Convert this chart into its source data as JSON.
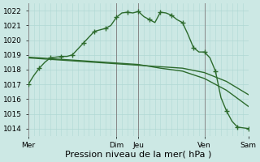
{
  "title": "",
  "xlabel": "Pression niveau de la mer( hPa )",
  "bg_color": "#cce8e4",
  "grid_color": "#b0d8d4",
  "line_color": "#2d6b2d",
  "vline_color": "#888888",
  "ylim": [
    1013.5,
    1022.5
  ],
  "yticks": [
    1014,
    1015,
    1016,
    1017,
    1018,
    1019,
    1020,
    1021,
    1022
  ],
  "xlim": [
    0,
    120
  ],
  "x_day_ticks": [
    0,
    48,
    60,
    96,
    120
  ],
  "x_day_labels": [
    "Mer",
    "Dim",
    "Jeu",
    "Ven",
    "Sam"
  ],
  "x_vlines": [
    0,
    48,
    60,
    96,
    120
  ],
  "series1_x": [
    0,
    3,
    6,
    9,
    12,
    15,
    18,
    21,
    24,
    27,
    30,
    33,
    36,
    39,
    42,
    45,
    48,
    51,
    54,
    57,
    60,
    63,
    66,
    69,
    72,
    75,
    78,
    81,
    84,
    87,
    90,
    93,
    96,
    99,
    102,
    105,
    108,
    111,
    114,
    117,
    120
  ],
  "series1_y": [
    1017.0,
    1017.6,
    1018.1,
    1018.5,
    1018.8,
    1018.85,
    1018.9,
    1018.9,
    1019.0,
    1019.4,
    1019.8,
    1020.2,
    1020.6,
    1020.7,
    1020.8,
    1021.0,
    1021.55,
    1021.85,
    1021.9,
    1021.85,
    1021.95,
    1021.6,
    1021.4,
    1021.2,
    1021.9,
    1021.85,
    1021.7,
    1021.4,
    1021.2,
    1020.4,
    1019.5,
    1019.2,
    1019.2,
    1018.8,
    1017.9,
    1016.1,
    1015.2,
    1014.5,
    1014.1,
    1014.05,
    1014.0
  ],
  "series1_markers_x": [
    0,
    6,
    12,
    18,
    24,
    30,
    36,
    42,
    48,
    54,
    60,
    66,
    72,
    78,
    84,
    90,
    96,
    102,
    108,
    114,
    120
  ],
  "series1_markers_y": [
    1017.0,
    1018.1,
    1018.8,
    1018.9,
    1019.0,
    1019.8,
    1020.6,
    1020.8,
    1021.55,
    1021.9,
    1021.95,
    1021.4,
    1021.9,
    1021.7,
    1021.2,
    1019.5,
    1019.2,
    1017.9,
    1015.2,
    1014.1,
    1014.0
  ],
  "series2_x": [
    0,
    12,
    24,
    36,
    48,
    60,
    72,
    84,
    96,
    108,
    120
  ],
  "series2_y": [
    1018.8,
    1018.7,
    1018.6,
    1018.5,
    1018.4,
    1018.3,
    1018.2,
    1018.1,
    1017.8,
    1017.2,
    1016.3
  ],
  "series3_x": [
    0,
    12,
    24,
    36,
    48,
    60,
    72,
    84,
    96,
    108,
    120
  ],
  "series3_y": [
    1018.85,
    1018.75,
    1018.65,
    1018.55,
    1018.45,
    1018.35,
    1018.1,
    1017.9,
    1017.4,
    1016.6,
    1015.5
  ],
  "marker": "+",
  "markersize": 4,
  "linewidth": 1.0,
  "xlabel_fontsize": 8,
  "tick_fontsize": 6.5
}
